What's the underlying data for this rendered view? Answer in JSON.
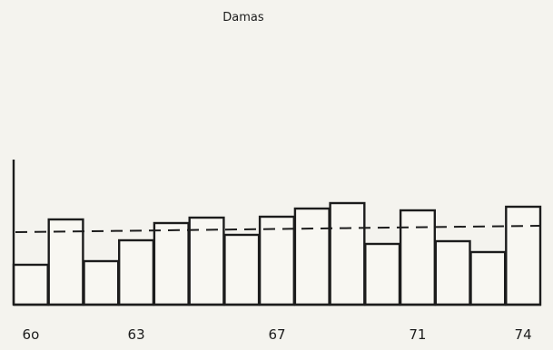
{
  "chart_data": {
    "type": "bar",
    "title": "Damas",
    "categories": [
      "60",
      "61",
      "62",
      "63",
      "64",
      "65",
      "66",
      "67",
      "68",
      "69",
      "70",
      "71",
      "72",
      "73",
      "74"
    ],
    "tick_labels": [
      {
        "category": "60",
        "text": "6o"
      },
      {
        "category": "63",
        "text": "63"
      },
      {
        "category": "67",
        "text": "67"
      },
      {
        "category": "71",
        "text": "71"
      },
      {
        "category": "74",
        "text": "74"
      }
    ],
    "values": [
      44,
      94,
      48,
      71,
      90,
      96,
      77,
      97,
      106,
      112,
      67,
      104,
      70,
      58,
      108
    ],
    "reference_line": {
      "style": "dashed",
      "start": 80,
      "end": 87
    },
    "ylim": [
      0,
      160
    ],
    "grid": false
  }
}
